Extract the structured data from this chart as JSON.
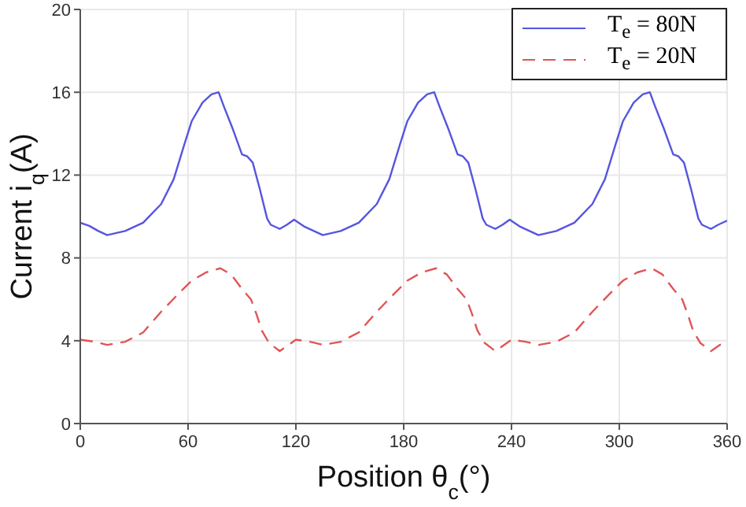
{
  "chart_data": {
    "type": "line",
    "xlabel": "Position  θ$_{c}$(°)",
    "ylabel": "Current  i$_{q}$(A)",
    "xlim": [
      0,
      360
    ],
    "xticks": [
      0,
      60,
      120,
      180,
      240,
      300,
      360
    ],
    "ylim": [
      0,
      20
    ],
    "yticks": [
      0,
      4,
      8,
      12,
      16,
      20
    ],
    "grid": true,
    "legend": "top right",
    "line_style": "solid",
    "marker": "none",
    "series": [
      {
        "name": "T$_{e}$ = 80N",
        "color": "#5555e0",
        "x": [
          0,
          5,
          10,
          15,
          25,
          35,
          45,
          52,
          58,
          62,
          68,
          73,
          77,
          80,
          85,
          90,
          93,
          96,
          100,
          104,
          106,
          111,
          115,
          119,
          125,
          130,
          135,
          145,
          155,
          165,
          172,
          178,
          182,
          188,
          193,
          197,
          200,
          205,
          210,
          213,
          216,
          220,
          224,
          226,
          231,
          235,
          239,
          245,
          250,
          255,
          265,
          275,
          285,
          292,
          298,
          302,
          308,
          313,
          317,
          320,
          325,
          330,
          333,
          336,
          340,
          344,
          346,
          351,
          355,
          360
        ],
        "values": [
          9.7,
          9.55,
          9.3,
          9.1,
          9.3,
          9.7,
          10.6,
          11.8,
          13.5,
          14.6,
          15.5,
          15.9,
          16.0,
          15.3,
          14.2,
          13.0,
          12.9,
          12.6,
          11.3,
          9.9,
          9.6,
          9.4,
          9.6,
          9.85,
          9.5,
          9.3,
          9.1,
          9.3,
          9.7,
          10.6,
          11.8,
          13.5,
          14.6,
          15.5,
          15.9,
          16.0,
          15.3,
          14.2,
          13.0,
          12.9,
          12.6,
          11.3,
          9.9,
          9.6,
          9.4,
          9.6,
          9.85,
          9.5,
          9.3,
          9.1,
          9.3,
          9.7,
          10.6,
          11.8,
          13.5,
          14.6,
          15.5,
          15.9,
          16.0,
          15.3,
          14.2,
          13.0,
          12.9,
          12.6,
          11.3,
          9.9,
          9.6,
          9.4,
          9.6,
          9.8
        ]
      },
      {
        "name": "T$_{e}$ = 20N",
        "color": "#e05555",
        "line_style": "dashed",
        "x": [
          0,
          8,
          15,
          25,
          35,
          45,
          55,
          62,
          70,
          78,
          84,
          90,
          95,
          98,
          101,
          105,
          111,
          116,
          120,
          128,
          135,
          145,
          155,
          165,
          175,
          182,
          190,
          198,
          204,
          210,
          215,
          218,
          221,
          225,
          231,
          236,
          240,
          248,
          255,
          265,
          275,
          285,
          295,
          302,
          310,
          318,
          324,
          330,
          335,
          338,
          341,
          345,
          351,
          356,
          360
        ],
        "values": [
          4.05,
          3.95,
          3.8,
          3.95,
          4.4,
          5.4,
          6.3,
          6.9,
          7.3,
          7.5,
          7.2,
          6.5,
          6.0,
          5.3,
          4.5,
          3.9,
          3.5,
          3.8,
          4.05,
          3.95,
          3.8,
          3.95,
          4.4,
          5.4,
          6.3,
          6.9,
          7.3,
          7.5,
          7.2,
          6.5,
          6.0,
          5.3,
          4.5,
          3.9,
          3.5,
          3.8,
          4.05,
          3.95,
          3.8,
          3.95,
          4.4,
          5.4,
          6.3,
          6.9,
          7.3,
          7.5,
          7.2,
          6.5,
          6.0,
          5.3,
          4.5,
          3.9,
          3.5,
          3.8,
          3.9
        ]
      }
    ]
  }
}
